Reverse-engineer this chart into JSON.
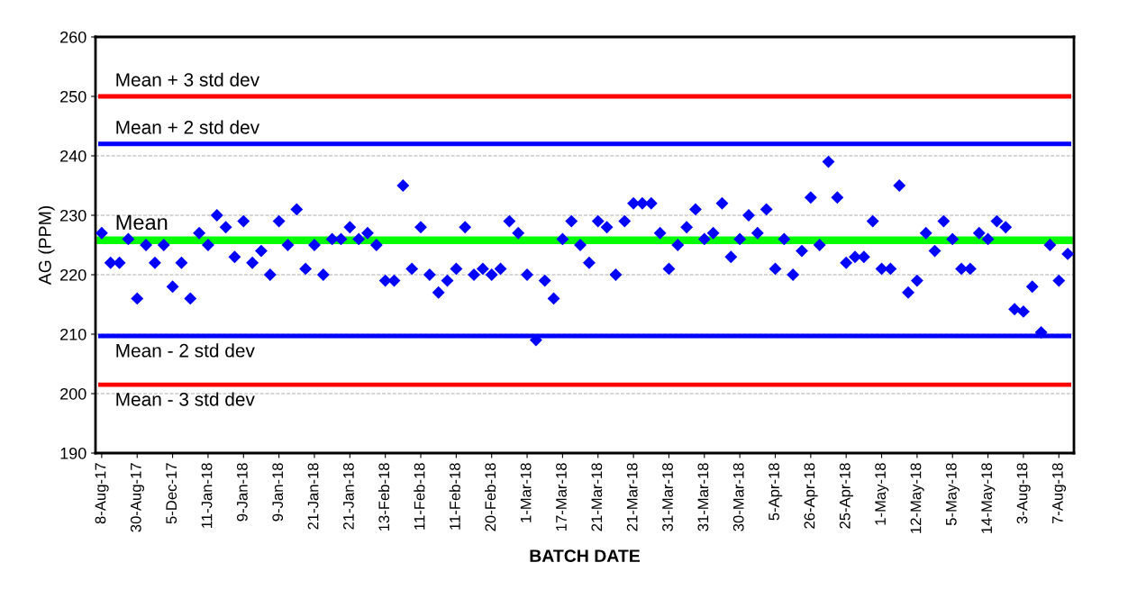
{
  "chart_data": {
    "type": "scatter",
    "xlabel": "BATCH DATE",
    "ylabel": "AG (PPM)",
    "categories": [
      "8-Aug-17",
      null,
      null,
      null,
      "30-Aug-17",
      null,
      null,
      null,
      "5-Dec-17",
      null,
      null,
      null,
      "11-Jan-18",
      null,
      null,
      null,
      "9-Jan-18",
      null,
      null,
      null,
      "9-Jan-18",
      null,
      null,
      null,
      "21-Jan-18",
      null,
      null,
      null,
      "21-Jan-18",
      null,
      null,
      null,
      "13-Feb-18",
      null,
      null,
      null,
      "11-Feb-18",
      null,
      null,
      null,
      "11-Feb-18",
      null,
      null,
      null,
      "20-Feb-18",
      null,
      null,
      null,
      "1-Mar-18",
      null,
      null,
      null,
      "17-Mar-18",
      null,
      null,
      null,
      "21-Mar-18",
      null,
      null,
      null,
      "21-Mar-18",
      null,
      null,
      null,
      "31-Mar-18",
      null,
      null,
      null,
      "31-Mar-18",
      null,
      null,
      null,
      "30-Mar-18",
      null,
      null,
      null,
      "5-Apr-18",
      null,
      null,
      null,
      "26-Apr-18",
      null,
      null,
      null,
      "25-Apr-18",
      null,
      null,
      null,
      "1-May-18",
      null,
      null,
      null,
      "12-May-18",
      null,
      null,
      null,
      "5-May-18",
      null,
      null,
      null,
      "14-May-18",
      null,
      null,
      null,
      "3-Aug-18",
      null,
      null,
      null,
      "7-Aug-18",
      null
    ],
    "series": [
      {
        "color": "#0000ff",
        "values": [
          227,
          222,
          222,
          226,
          216,
          225,
          222,
          225,
          218,
          222,
          216,
          227,
          225,
          230,
          228,
          223,
          229,
          222,
          224,
          220,
          229,
          225,
          231,
          221,
          225,
          220,
          226,
          226,
          228,
          226,
          227,
          225,
          219,
          219,
          235,
          221,
          228,
          220,
          217,
          219,
          221,
          228,
          220,
          221,
          220,
          221,
          229,
          227,
          220,
          209,
          219,
          216,
          226,
          229,
          225,
          222,
          229,
          228,
          220,
          229,
          232,
          232,
          232,
          227,
          221,
          225,
          228,
          231,
          226,
          227,
          232,
          223,
          226,
          230,
          227,
          231,
          221,
          226,
          220,
          224,
          233,
          225,
          239,
          233,
          222,
          223,
          223,
          229,
          221,
          221,
          235,
          217,
          219,
          227,
          224,
          229,
          226,
          221,
          221,
          227,
          226,
          229,
          228,
          214.2,
          213.8,
          218,
          210.3,
          225,
          219,
          223.5
        ]
      }
    ],
    "marker": "diamond",
    "ylim": [
      190,
      260
    ],
    "yticks": [
      190,
      200,
      210,
      220,
      230,
      240,
      250,
      260
    ],
    "grid": "y",
    "ref_lines": [
      {
        "axis": "y",
        "value": 250,
        "label": "Mean + 3 std dev",
        "color": "#ff0000"
      },
      {
        "axis": "y",
        "value": 242,
        "label": "Mean + 2 std dev",
        "color": "#0000ff"
      },
      {
        "axis": "y",
        "value": 225.8,
        "label": "Mean",
        "color": "#00ff00"
      },
      {
        "axis": "y",
        "value": 209.7,
        "label": "Mean - 2 std dev",
        "color": "#0000ff"
      },
      {
        "axis": "y",
        "value": 201.5,
        "label": "Mean - 3 std dev",
        "color": "#ff0000"
      }
    ]
  }
}
